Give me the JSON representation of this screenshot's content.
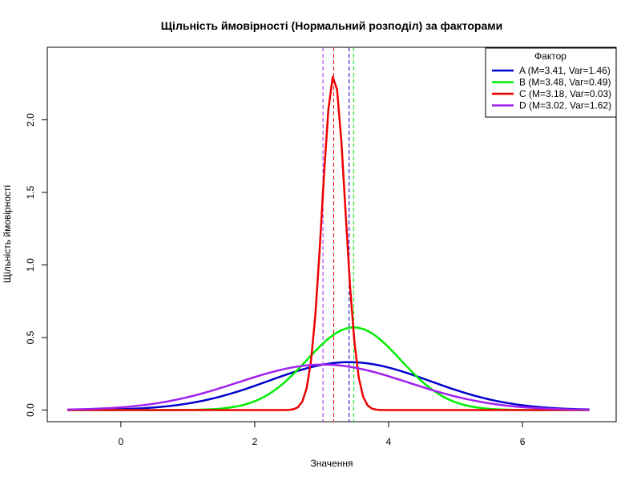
{
  "chart_data": {
    "type": "line",
    "title": "Щільність ймовірності (Нормальний розподіл) за факторами",
    "xlabel": "Значення",
    "ylabel": "Щільність ймовірності",
    "xlim": [
      -1.1,
      7.4
    ],
    "ylim": [
      -0.08,
      2.5
    ],
    "x_ticks": [
      0,
      2,
      4,
      6
    ],
    "y_ticks": [
      0.0,
      0.5,
      1.0,
      1.5,
      2.0
    ],
    "x_tick_labels": [
      "0",
      "2",
      "4",
      "6"
    ],
    "y_tick_labels": [
      "0.0",
      "0.5",
      "1.0",
      "1.5",
      "2.0"
    ],
    "x_range": [
      -0.8,
      7.0
    ],
    "legend_title": "Фактор",
    "legend_position": "top-right",
    "grid": false,
    "series": [
      {
        "name": "A (M=3.41, Var=1.46)",
        "mean": 3.41,
        "variance": 1.46,
        "color": "#0000CD"
      },
      {
        "name": "B (M=3.48, Var=0.49)",
        "mean": 3.48,
        "variance": 0.49,
        "color": "#00EE00"
      },
      {
        "name": "C (M=3.18, Var=0.03)",
        "mean": 3.18,
        "variance": 0.03,
        "color": "#EE0000"
      },
      {
        "name": "D (M=3.02, Var=1.62)",
        "mean": 3.02,
        "variance": 1.62,
        "color": "#A020F0"
      }
    ]
  }
}
